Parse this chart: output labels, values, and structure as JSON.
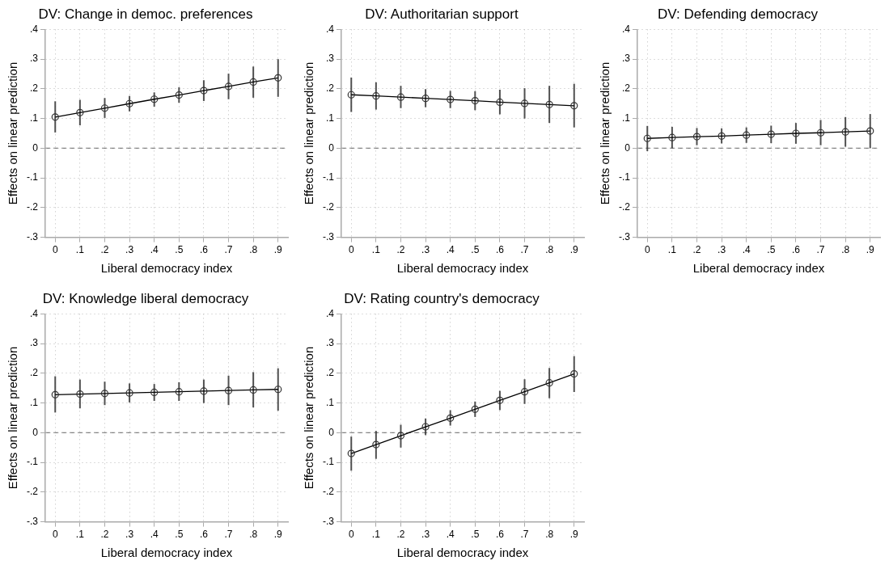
{
  "chart_data": [
    {
      "type": "line",
      "title": "DV: Change in democ. preferences",
      "xlabel": "Liberal democracy index",
      "ylabel": "Effects on linear prediction",
      "x": [
        0,
        0.1,
        0.2,
        0.3,
        0.4,
        0.5,
        0.6,
        0.7,
        0.8,
        0.9
      ],
      "series": [
        {
          "color": "#333333",
          "values": [
            0.105,
            0.12,
            0.135,
            0.15,
            0.165,
            0.179,
            0.194,
            0.208,
            0.223,
            0.237
          ],
          "errors": [
            [
              0.053,
              0.158
            ],
            [
              0.077,
              0.163
            ],
            [
              0.102,
              0.169
            ],
            [
              0.124,
              0.176
            ],
            [
              0.14,
              0.188
            ],
            [
              0.153,
              0.205
            ],
            [
              0.159,
              0.229
            ],
            [
              0.165,
              0.251
            ],
            [
              0.17,
              0.275
            ],
            [
              0.173,
              0.3
            ]
          ]
        }
      ],
      "xlim": [
        -0.04,
        0.94
      ],
      "xticks": [
        {
          "value": 0,
          "label": "0"
        },
        {
          "value": 0.1,
          "label": ".1"
        },
        {
          "value": 0.2,
          "label": ".2"
        },
        {
          "value": 0.3,
          "label": ".3"
        },
        {
          "value": 0.4,
          "label": ".4"
        },
        {
          "value": 0.5,
          "label": ".5"
        },
        {
          "value": 0.6,
          "label": ".6"
        },
        {
          "value": 0.7,
          "label": ".7"
        },
        {
          "value": 0.8,
          "label": ".8"
        },
        {
          "value": 0.9,
          "label": ".9"
        }
      ],
      "ylim": [
        -0.3,
        0.4
      ],
      "yticks": [
        {
          "value": -0.3,
          "label": "-.3"
        },
        {
          "value": -0.2,
          "label": "-.2"
        },
        {
          "value": -0.1,
          "label": "-.1"
        },
        {
          "value": 0,
          "label": "0"
        },
        {
          "value": 0.1,
          "label": ".1"
        },
        {
          "value": 0.2,
          "label": ".2"
        },
        {
          "value": 0.3,
          "label": ".3"
        },
        {
          "value": 0.4,
          "label": ".4"
        }
      ],
      "ref_lines": [
        {
          "axis": "y",
          "value": 0,
          "color": "#808080",
          "line_style": "dashed"
        }
      ],
      "grid": true,
      "legend": false,
      "marker": "circle",
      "line_style": "solid"
    },
    {
      "type": "line",
      "title": "DV: Authoritarian support",
      "xlabel": "Liberal democracy index",
      "ylabel": "Effects on linear prediction",
      "x": [
        0,
        0.1,
        0.2,
        0.3,
        0.4,
        0.5,
        0.6,
        0.7,
        0.8,
        0.9
      ],
      "series": [
        {
          "color": "#333333",
          "values": [
            0.18,
            0.176,
            0.172,
            0.168,
            0.164,
            0.16,
            0.155,
            0.151,
            0.147,
            0.143
          ],
          "errors": [
            [
              0.122,
              0.238
            ],
            [
              0.13,
              0.222
            ],
            [
              0.135,
              0.21
            ],
            [
              0.138,
              0.199
            ],
            [
              0.135,
              0.193
            ],
            [
              0.128,
              0.192
            ],
            [
              0.114,
              0.197
            ],
            [
              0.1,
              0.202
            ],
            [
              0.085,
              0.21
            ],
            [
              0.07,
              0.217
            ]
          ]
        }
      ],
      "xlim": [
        -0.04,
        0.94
      ],
      "xticks": [
        {
          "value": 0,
          "label": "0"
        },
        {
          "value": 0.1,
          "label": ".1"
        },
        {
          "value": 0.2,
          "label": ".2"
        },
        {
          "value": 0.3,
          "label": ".3"
        },
        {
          "value": 0.4,
          "label": ".4"
        },
        {
          "value": 0.5,
          "label": ".5"
        },
        {
          "value": 0.6,
          "label": ".6"
        },
        {
          "value": 0.7,
          "label": ".7"
        },
        {
          "value": 0.8,
          "label": ".8"
        },
        {
          "value": 0.9,
          "label": ".9"
        }
      ],
      "ylim": [
        -0.3,
        0.4
      ],
      "yticks": [
        {
          "value": -0.3,
          "label": "-.3"
        },
        {
          "value": -0.2,
          "label": "-.2"
        },
        {
          "value": -0.1,
          "label": "-.1"
        },
        {
          "value": 0,
          "label": "0"
        },
        {
          "value": 0.1,
          "label": ".1"
        },
        {
          "value": 0.2,
          "label": ".2"
        },
        {
          "value": 0.3,
          "label": ".3"
        },
        {
          "value": 0.4,
          "label": ".4"
        }
      ],
      "ref_lines": [
        {
          "axis": "y",
          "value": 0,
          "color": "#808080",
          "line_style": "dashed"
        }
      ],
      "grid": true,
      "legend": false,
      "marker": "circle",
      "line_style": "solid"
    },
    {
      "type": "line",
      "title": "DV: Defending democracy",
      "xlabel": "Liberal democracy index",
      "ylabel": "Effects on linear prediction",
      "x": [
        0,
        0.1,
        0.2,
        0.3,
        0.4,
        0.5,
        0.6,
        0.7,
        0.8,
        0.9
      ],
      "series": [
        {
          "color": "#333333",
          "values": [
            0.033,
            0.036,
            0.039,
            0.041,
            0.044,
            0.047,
            0.05,
            0.052,
            0.055,
            0.058
          ],
          "errors": [
            [
              -0.01,
              0.075
            ],
            [
              0,
              0.072
            ],
            [
              0.01,
              0.068
            ],
            [
              0.016,
              0.067
            ],
            [
              0.018,
              0.07
            ],
            [
              0.017,
              0.076
            ],
            [
              0.015,
              0.085
            ],
            [
              0.01,
              0.095
            ],
            [
              0.005,
              0.105
            ],
            [
              0,
              0.115
            ]
          ]
        }
      ],
      "xlim": [
        -0.04,
        0.94
      ],
      "xticks": [
        {
          "value": 0,
          "label": "0"
        },
        {
          "value": 0.1,
          "label": ".1"
        },
        {
          "value": 0.2,
          "label": ".2"
        },
        {
          "value": 0.3,
          "label": ".3"
        },
        {
          "value": 0.4,
          "label": ".4"
        },
        {
          "value": 0.5,
          "label": ".5"
        },
        {
          "value": 0.6,
          "label": ".6"
        },
        {
          "value": 0.7,
          "label": ".7"
        },
        {
          "value": 0.8,
          "label": ".8"
        },
        {
          "value": 0.9,
          "label": ".9"
        }
      ],
      "ylim": [
        -0.3,
        0.4
      ],
      "yticks": [
        {
          "value": -0.3,
          "label": "-.3"
        },
        {
          "value": -0.2,
          "label": "-.2"
        },
        {
          "value": -0.1,
          "label": "-.1"
        },
        {
          "value": 0,
          "label": "0"
        },
        {
          "value": 0.1,
          "label": ".1"
        },
        {
          "value": 0.2,
          "label": ".2"
        },
        {
          "value": 0.3,
          "label": ".3"
        },
        {
          "value": 0.4,
          "label": ".4"
        }
      ],
      "ref_lines": [
        {
          "axis": "y",
          "value": 0,
          "color": "#808080",
          "line_style": "dashed"
        }
      ],
      "grid": true,
      "legend": false,
      "marker": "circle",
      "line_style": "solid"
    },
    {
      "type": "line",
      "title": "DV: Knowledge liberal democracy",
      "xlabel": "Liberal democracy index",
      "ylabel": "Effects on linear prediction",
      "x": [
        0,
        0.1,
        0.2,
        0.3,
        0.4,
        0.5,
        0.6,
        0.7,
        0.8,
        0.9
      ],
      "series": [
        {
          "color": "#333333",
          "values": [
            0.128,
            0.13,
            0.132,
            0.134,
            0.136,
            0.138,
            0.14,
            0.142,
            0.144,
            0.146
          ],
          "errors": [
            [
              0.068,
              0.19
            ],
            [
              0.082,
              0.179
            ],
            [
              0.093,
              0.172
            ],
            [
              0.102,
              0.166
            ],
            [
              0.107,
              0.164
            ],
            [
              0.107,
              0.17
            ],
            [
              0.1,
              0.179
            ],
            [
              0.093,
              0.192
            ],
            [
              0.085,
              0.204
            ],
            [
              0.074,
              0.217
            ]
          ]
        }
      ],
      "xlim": [
        -0.04,
        0.94
      ],
      "xticks": [
        {
          "value": 0,
          "label": "0"
        },
        {
          "value": 0.1,
          "label": ".1"
        },
        {
          "value": 0.2,
          "label": ".2"
        },
        {
          "value": 0.3,
          "label": ".3"
        },
        {
          "value": 0.4,
          "label": ".4"
        },
        {
          "value": 0.5,
          "label": ".5"
        },
        {
          "value": 0.6,
          "label": ".6"
        },
        {
          "value": 0.7,
          "label": ".7"
        },
        {
          "value": 0.8,
          "label": ".8"
        },
        {
          "value": 0.9,
          "label": ".9"
        }
      ],
      "ylim": [
        -0.3,
        0.4
      ],
      "yticks": [
        {
          "value": -0.3,
          "label": "-.3"
        },
        {
          "value": -0.2,
          "label": "-.2"
        },
        {
          "value": -0.1,
          "label": "-.1"
        },
        {
          "value": 0,
          "label": "0"
        },
        {
          "value": 0.1,
          "label": ".1"
        },
        {
          "value": 0.2,
          "label": ".2"
        },
        {
          "value": 0.3,
          "label": ".3"
        },
        {
          "value": 0.4,
          "label": ".4"
        }
      ],
      "ref_lines": [
        {
          "axis": "y",
          "value": 0,
          "color": "#808080",
          "line_style": "dashed"
        }
      ],
      "grid": true,
      "legend": false,
      "marker": "circle",
      "line_style": "solid"
    },
    {
      "type": "line",
      "title": "DV: Rating country's democracy",
      "xlabel": "Liberal democracy index",
      "ylabel": "Effects on linear prediction",
      "x": [
        0,
        0.1,
        0.2,
        0.3,
        0.4,
        0.5,
        0.6,
        0.7,
        0.8,
        0.9
      ],
      "series": [
        {
          "color": "#333333",
          "values": [
            -0.07,
            -0.04,
            -0.01,
            0.02,
            0.049,
            0.079,
            0.109,
            0.138,
            0.168,
            0.198
          ],
          "errors": [
            [
              -0.128,
              -0.013
            ],
            [
              -0.088,
              0.006
            ],
            [
              -0.05,
              0.027
            ],
            [
              -0.008,
              0.048
            ],
            [
              0.024,
              0.076
            ],
            [
              0.053,
              0.105
            ],
            [
              0.076,
              0.141
            ],
            [
              0.097,
              0.18
            ],
            [
              0.116,
              0.218
            ],
            [
              0.137,
              0.258
            ]
          ]
        }
      ],
      "xlim": [
        -0.04,
        0.94
      ],
      "xticks": [
        {
          "value": 0,
          "label": "0"
        },
        {
          "value": 0.1,
          "label": ".1"
        },
        {
          "value": 0.2,
          "label": ".2"
        },
        {
          "value": 0.3,
          "label": ".3"
        },
        {
          "value": 0.4,
          "label": ".4"
        },
        {
          "value": 0.5,
          "label": ".5"
        },
        {
          "value": 0.6,
          "label": ".6"
        },
        {
          "value": 0.7,
          "label": ".7"
        },
        {
          "value": 0.8,
          "label": ".8"
        },
        {
          "value": 0.9,
          "label": ".9"
        }
      ],
      "ylim": [
        -0.3,
        0.4
      ],
      "yticks": [
        {
          "value": -0.3,
          "label": "-.3"
        },
        {
          "value": -0.2,
          "label": "-.2"
        },
        {
          "value": -0.1,
          "label": "-.1"
        },
        {
          "value": 0,
          "label": "0"
        },
        {
          "value": 0.1,
          "label": ".1"
        },
        {
          "value": 0.2,
          "label": ".2"
        },
        {
          "value": 0.3,
          "label": ".3"
        },
        {
          "value": 0.4,
          "label": ".4"
        }
      ],
      "ref_lines": [
        {
          "axis": "y",
          "value": 0,
          "color": "#808080",
          "line_style": "dashed"
        }
      ],
      "grid": true,
      "legend": false,
      "marker": "circle",
      "line_style": "solid"
    }
  ]
}
